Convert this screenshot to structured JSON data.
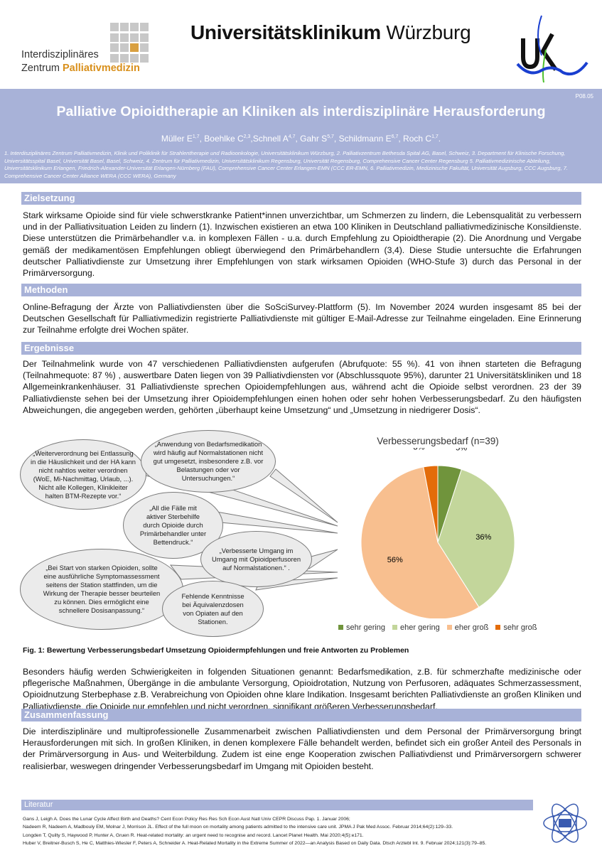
{
  "header": {
    "left_logo": {
      "line1": "Interdisziplinäres",
      "line2_a": "Zentrum ",
      "line2_b": "Palliativmedizin"
    },
    "university_bold": "Universitätsklinikum",
    "university_regular": "Würzburg",
    "ukw_logo_text": "UK",
    "poster_code": "P08.05",
    "title": "Palliative Opioidtherapie an Kliniken als interdisziplinäre Herausforderung",
    "authors": [
      {
        "name": "Müller E",
        "sup": "1,7",
        "sep": ", "
      },
      {
        "name": "Boehlke C",
        "sup": "2,3",
        "sep": ","
      },
      {
        "name": "Schnell A",
        "sup": "4,7",
        "sep": ", "
      },
      {
        "name": "Gahr S",
        "sup": "5,7",
        "sep": ", "
      },
      {
        "name": "Schildmann E",
        "sup": "6,7",
        "sep": ", "
      },
      {
        "name": "Roch C",
        "sup": "1,7",
        "sep": "."
      }
    ],
    "affiliations": "1. Interdisziplinäres Zentrum Palliativmedizin, Klinik und Poliklinik für Strahlentherapie und Radioonkologie, Universitätsklinikum Würzburg, 2. Palliativzentrum Bethesda Spital AG, Basel, Schweiz, 3. Department für Klinische Forschung, Universitätsspital Basel, Universität Basel, Basel, Schweiz, 4. Zentrum für Palliativmedizin, Universitätsklinikum Regensburg, Universität Regensburg, Comprehensive Cancer Center Regensburg 5. Palliativmedizinische Abteilung, Universitätsklinikum Erlangen, Friedrich-Alexander-Universität Erlangen-Nürnberg (FAU), Comprehensive Cancer Center Erlangen-EMN (CCC ER-EMN, 6. Palliativmedizin, Medizinische Fakultät, Universität Augsburg, CCC Augsburg, 7. Comprehensive Cancer Center Alliance WERA (CCC WERA), Germany"
  },
  "sections": {
    "zielsetzung": {
      "heading": "Zielsetzung",
      "text": "Stark wirksame Opioide sind für viele schwerstkranke Patient*innen unverzichtbar, um Schmerzen zu lindern, die Lebensqualität zu verbessern und in der Palliativsituation Leiden zu lindern (1). Inzwischen existieren an etwa 100 Kliniken in Deutschland palliativmedizinische Konsildienste. Diese unterstützen die Primärbehandler v.a. in komplexen Fällen - u.a. durch Empfehlung zu Opioidtherapie (2). Die Anordnung und Vergabe gemäß der medikamentösen Empfehlungen obliegt überwiegend den Primärbehandlern (3,4). Diese Studie untersuchte die Erfahrungen deutscher Palliativdienste zur Umsetzung ihrer Empfehlungen von stark wirksamen Opioiden (WHO-Stufe 3) durch das Personal in der Primärversorgung."
    },
    "methoden": {
      "heading": "Methoden",
      "text": "Online-Befragung der Ärzte von Palliativdiensten über die SoSciSurvey-Plattform (5). Im November 2024 wurden insgesamt 85 bei der Deutschen Gesellschaft für Palliativmedizin registrierte Palliativdienste mit gültiger E-Mail-Adresse zur Teilnahme eingeladen. Eine Erinnerung zur Teilnahme erfolgte drei Wochen später."
    },
    "ergebnisse": {
      "heading": "Ergebnisse",
      "text": "Der Teilnahmelink wurde von 47 verschiedenen Palliativdiensten aufgerufen (Abrufquote: 55 %).  41 von ihnen starteten die Befragung (Teilnahmequote: 87 %) , auswertbare Daten liegen von 39 Palliativdiensten vor (Abschlussquote 95%), darunter 21 Universitätskliniken und  18 Allgemeinkrankenhäuser. 31 Palliativdienste sprechen Opioidempfehlungen aus, während acht die Opioide selbst verordnen. 23 der 39 Palliativdienste sehen bei der Umsetzung ihrer Opioidempfehlungen einen hohen oder sehr hohen Verbesserungsbedarf. Zu den häufigsten Abweichungen, die angegeben werden, gehörten „überhaupt keine Umsetzung“ und „Umsetzung in niedrigerer Dosis“.",
      "text2": "Besonders häufig werden Schwierigkeiten in folgenden Situationen genannt: Bedarfsmedikation, z.B. für schmerzhafte medizinische oder pflegerische Maßnahmen, Übergänge in die ambulante Versorgung, Opioidrotation, Nutzung von Perfusoren, adäquates Schmerzassessment, Opioidnutzung Sterbephase z.B. Verabreichung von Opioiden ohne klare Indikation. Insgesamt berichten Palliativdienste an großen Kliniken und Palliativdienste, die Opioide nur empfehlen und nicht verordnen, signifikant größeren Verbesserungsbedarf."
    },
    "zusammenfassung": {
      "heading": "Zusammenfassung",
      "text": "Die interdisziplinäre und multiprofessionelle Zusammenarbeit zwischen Palliativdiensten und dem Personal der Primärversorgung bringt Herausforderungen mit sich. In großen Kliniken, in denen komplexere Fälle behandelt werden, befindet sich ein großer Anteil des Personals in der Primärversorgung in Aus- und Weiterbildung. Zudem ist eine enge Kooperation zwischen Palliativdienst und Primärversorgern schwerer realisierbar, weswegen dringender Verbesserungsbedarf im Umgang mit Opioiden besteht."
    },
    "literatur": {
      "heading": "Literatur",
      "refs": [
        "Gans J, Leigh A. Does the Lunar Cycle Affect Birth and Deaths? Cent Econ Policy Res Res Sch Econ Aust Natl Univ CEPR Discuss Pap. 1. Januar 2006;",
        "Nadeem R, Nadeem A, Madbouly EM, Molnar J, Morrison JL. Effect of the full moon on mortality among patients admitted to the intensive care unit. JPMA J Pak Med Assoc. Februar 2014;64(2):129–33.",
        "Longden T, Quilty S, Haywood P, Hunter A, Gruen R. Heat-related mortality: an urgent need to recognise and record. Lancet Planet Health. Mai 2020;4(5):e171.",
        "Huber V, Breitner-Busch S, He C, Matthies-Wiesler F, Peters A, Schneider A. Heat-Related Mortality in the Extreme Summer of 2022—an Analysis Based on Daily Data. Dtsch Arztebl Int. 9. Februar 2024;121(3):79–85."
      ]
    }
  },
  "quotes": [
    "„Weiterverordnung bei Entlassung in die Häuslichkeit und der HA kann nicht nahtlos weiter verordnen (WoE, Mi-Nachmittag, Urlaub, ...). Nicht alle Kollegen, Klinikleiter halten BTM-Rezepte vor.“",
    "„Anwendung von Bedarfsmedikation wird häufig auf Normalstationen nicht gut umgesetzt, insbesondere z.B. vor Belastungen oder vor Untersuchungen.“",
    "„All die Fälle mit aktiver Sterbehilfe durch Opioide durch Primärbehandler unter Bettendruck.“",
    "„Verbesserte Umgang im Umgang mit Opioidperfusoren auf Normalstationen.“ .",
    "„Bei Start von starken Opioiden, sollte eine ausführliche Symptomassessment seitens der Station stattfinden, um die Wirkung der Therapie besser beurteilen zu können. Dies ermöglicht eine schnellere Dosisanpassung.“",
    "Fehlende Kenntnisse bei Äquivalenzdosen von Opiaten auf den Stationen."
  ],
  "figure_caption": "Fig. 1: Bewertung Verbesserungsbedarf Umsetzung Opioidermpfehlungen und freie Antworten zu Problemen",
  "chart_data": {
    "type": "pie",
    "title": "Verbesserungsbedarf (n=39)",
    "categories": [
      "sehr gering",
      "eher gering",
      "eher groß",
      "sehr groß"
    ],
    "values": [
      5,
      36,
      56,
      3
    ],
    "labels": [
      "5%",
      "36%",
      "56%",
      "3%"
    ],
    "colors": [
      "#70943c",
      "#c3d69b",
      "#f8bf8f",
      "#e36c0a"
    ],
    "legend": "bottom"
  },
  "colors": {
    "band": "#a8b2d8",
    "accent_orange": "#d9901c"
  }
}
